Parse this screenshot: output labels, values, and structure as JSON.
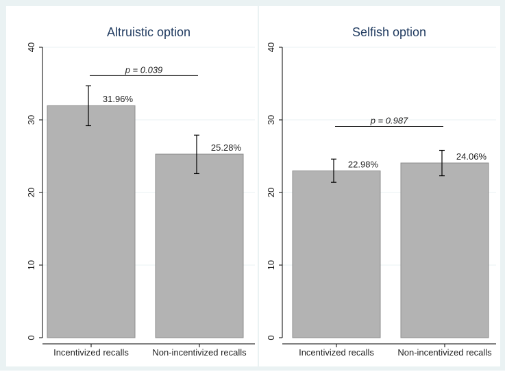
{
  "chart_data": [
    {
      "type": "bar",
      "title": "Altruistic option",
      "categories": [
        "Incentivized recalls",
        "Non-incentivized recalls"
      ],
      "values": [
        31.96,
        25.28
      ],
      "value_labels": [
        "31.96%",
        "25.28%"
      ],
      "error_bars": [
        [
          29.2,
          34.7
        ],
        [
          22.6,
          27.9
        ]
      ],
      "ylim": [
        0,
        40
      ],
      "yticks": [
        0,
        10,
        20,
        30,
        40
      ],
      "ytick_labels": [
        "0",
        "10",
        "20",
        "30",
        "40"
      ],
      "grid": true,
      "annotation": {
        "text": "p = 0.039",
        "y": 36.1
      }
    },
    {
      "type": "bar",
      "title": "Selfish option",
      "categories": [
        "Incentivized recalls",
        "Non-incentivized recalls"
      ],
      "values": [
        22.98,
        24.06
      ],
      "value_labels": [
        "22.98%",
        "24.06%"
      ],
      "error_bars": [
        [
          21.4,
          24.6
        ],
        [
          22.3,
          25.8
        ]
      ],
      "ylim": [
        0,
        40
      ],
      "yticks": [
        0,
        10,
        20,
        30,
        40
      ],
      "ytick_labels": [
        "0",
        "10",
        "20",
        "30",
        "40"
      ],
      "grid": true,
      "annotation": {
        "text": "p = 0.987",
        "y": 29.1
      }
    }
  ],
  "colors": {
    "outer_background": "#eaf2f3",
    "panel_background": "#ffffff",
    "bar_fill": "#b3b3b3",
    "bar_stroke": "#8c8c8c",
    "title_color": "#1f3a5f",
    "grid_color": "#eaf2f3",
    "axis_color": "#000000"
  }
}
